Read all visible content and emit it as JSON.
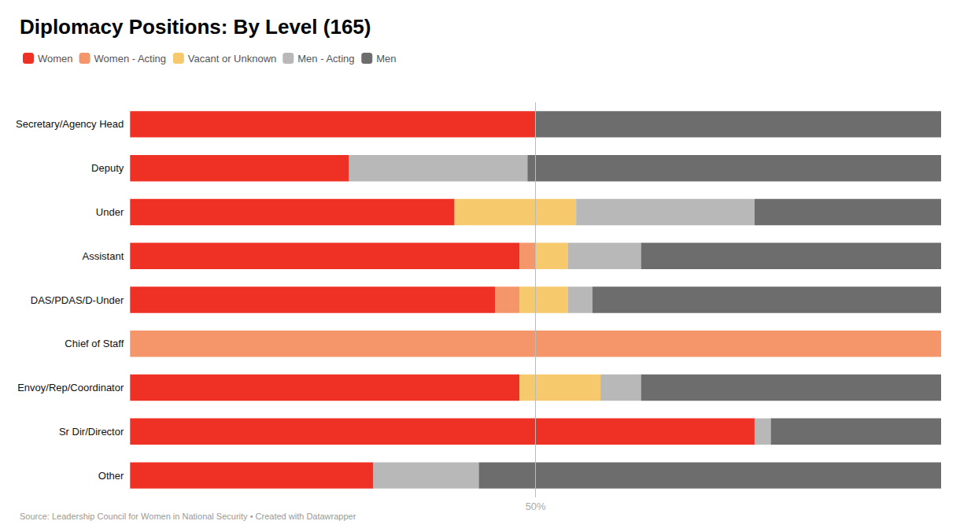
{
  "chart_data": {
    "type": "bar",
    "orientation": "horizontal",
    "stacked": true,
    "title": "Diplomacy Positions: By Level (165)",
    "categories": [
      "Secretary/Agency Head",
      "Deputy",
      "Under",
      "Assistant",
      "DAS/PDAS/D-Under",
      "Chief of Staff",
      "Envoy/Rep/Coordinator",
      "Sr Dir/Director",
      "Other"
    ],
    "series": [
      {
        "name": "Women",
        "color": "#ee3124",
        "values": [
          50,
          27,
          40,
          48,
          45,
          0,
          48,
          77,
          30
        ]
      },
      {
        "name": "Women - Acting",
        "color": "#f4956a",
        "values": [
          0,
          0,
          0,
          2,
          3,
          100,
          0,
          0,
          0
        ]
      },
      {
        "name": "Vacant or Unknown",
        "color": "#f5c96c",
        "values": [
          0,
          0,
          15,
          4,
          6,
          0,
          10,
          0,
          0
        ]
      },
      {
        "name": "Men - Acting",
        "color": "#b8b8b8",
        "values": [
          0,
          22,
          22,
          9,
          3,
          0,
          5,
          2,
          13
        ]
      },
      {
        "name": "Men",
        "color": "#6d6d6d",
        "values": [
          50,
          51,
          23,
          37,
          43,
          0,
          37,
          21,
          57
        ]
      }
    ],
    "xlim": [
      0,
      100
    ],
    "tick_labels": "y",
    "grid": false,
    "legend": "upper left",
    "annotations": [
      {
        "text": "50%",
        "x": 50
      },
      {
        "text": "Source: Leadership Council for Women in National Security • Created with Datawrapper"
      }
    ]
  }
}
